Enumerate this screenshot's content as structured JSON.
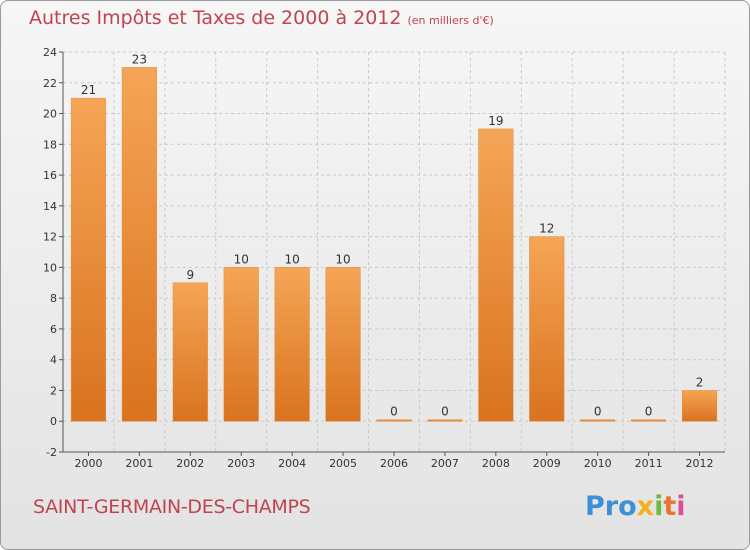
{
  "title": "Autres Impôts et Taxes de 2000 à 2012",
  "title_unit": "(en milliers d'€)",
  "commune": "SAINT-GERMAIN-DES-CHAMPS",
  "logo": {
    "parts": [
      "Pro",
      "x",
      "i",
      "t",
      "i"
    ]
  },
  "colors": {
    "title": "#c0444f",
    "bar_top": "#f5a556",
    "bar_bottom": "#d9731f",
    "grid": "#c9c9c9"
  },
  "chart_data": {
    "type": "bar",
    "categories": [
      "2000",
      "2001",
      "2002",
      "2003",
      "2004",
      "2005",
      "2006",
      "2007",
      "2008",
      "2009",
      "2010",
      "2011",
      "2012"
    ],
    "values": [
      21,
      23,
      9,
      10,
      10,
      10,
      0,
      0,
      19,
      12,
      0,
      0,
      2
    ],
    "data_labels": [
      "21",
      "23",
      "9",
      "10",
      "10",
      "10",
      "0",
      "0",
      "19",
      "12",
      "0",
      "0",
      "2"
    ],
    "ylim": [
      -2,
      24
    ],
    "yticks": [
      -2,
      0,
      2,
      4,
      6,
      8,
      10,
      12,
      14,
      16,
      18,
      20,
      22,
      24
    ],
    "grid": true,
    "xlabel": "",
    "ylabel": ""
  }
}
